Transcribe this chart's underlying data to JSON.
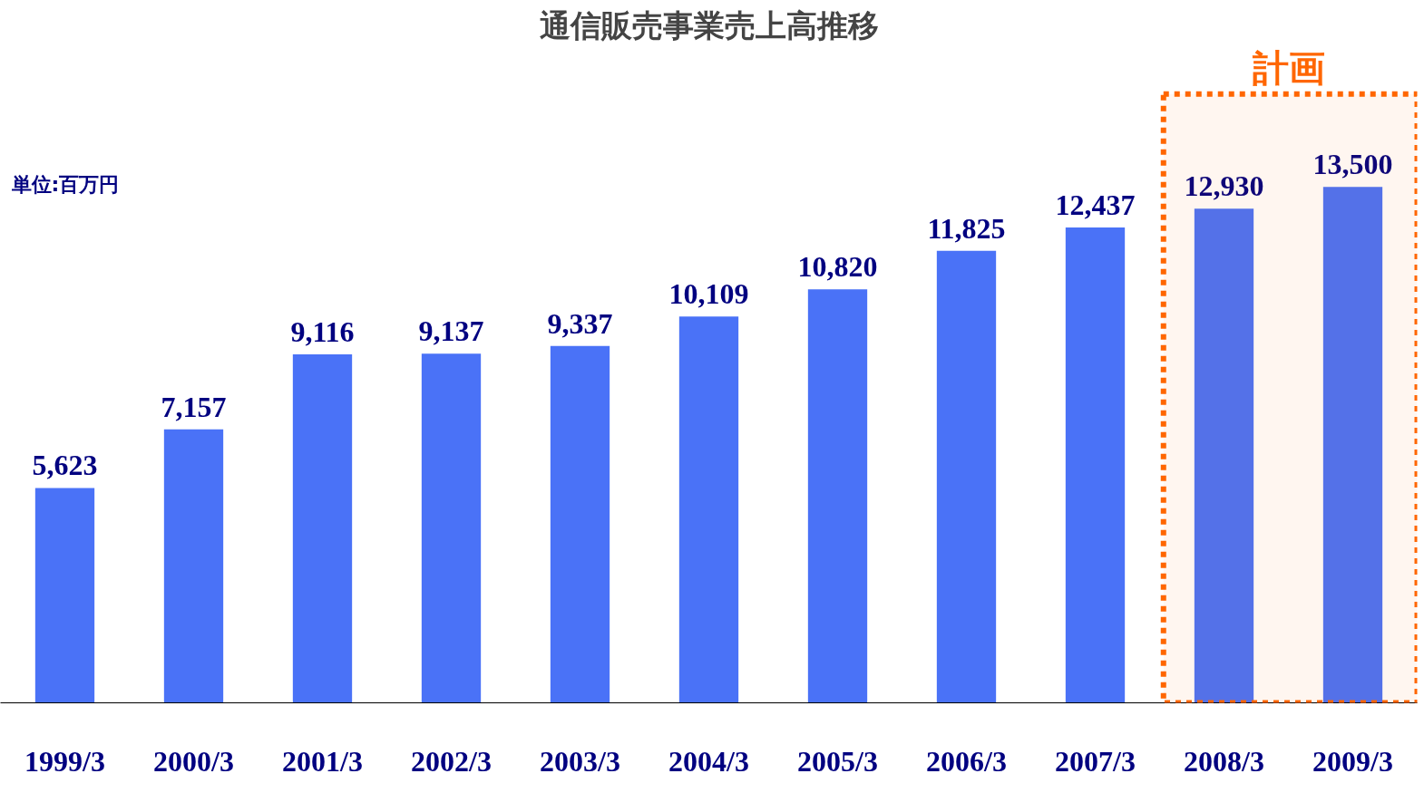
{
  "chart_data": {
    "type": "bar",
    "title": "通信販売事業売上高推移",
    "categories": [
      "1999/3",
      "2000/3",
      "2001/3",
      "2002/3",
      "2003/3",
      "2004/3",
      "2005/3",
      "2006/3",
      "2007/3",
      "2008/3",
      "2009/3"
    ],
    "values": [
      5623,
      7157,
      9116,
      9137,
      9337,
      10109,
      10820,
      11825,
      12437,
      12930,
      13500
    ],
    "color": "#4a72f7",
    "value_labels": [
      "5,623",
      "7,157",
      "9,116",
      "9,137",
      "9,337",
      "10,109",
      "10,820",
      "11,825",
      "12,437",
      "12,930",
      "13,500"
    ],
    "annotations": [
      "単位:百万円"
    ],
    "bands": [
      {
        "axis": "x",
        "from": "2008/3",
        "to": "2009/3",
        "label": "計画",
        "color": "#ff6600"
      }
    ]
  }
}
